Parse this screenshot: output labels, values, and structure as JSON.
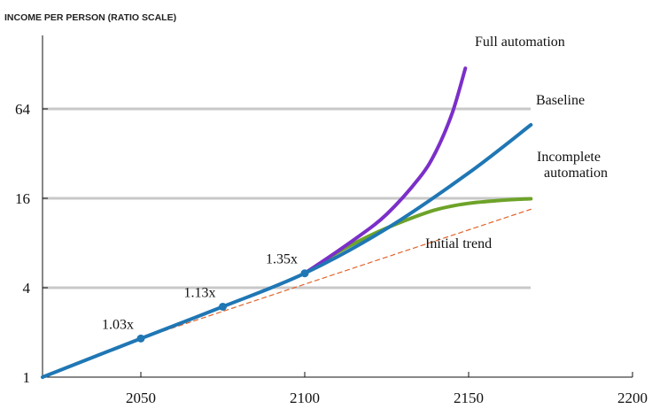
{
  "chart_data": {
    "type": "line",
    "title": "INCOME PER PERSON (RATIO SCALE)",
    "xlabel": "",
    "ylabel": "",
    "y_scale": "log2",
    "xlim": [
      2020,
      2200
    ],
    "ylim": [
      1,
      128
    ],
    "x_ticks": [
      "2050",
      "2100",
      "2150",
      "2200"
    ],
    "y_ticks": [
      "1",
      "4",
      "16",
      "64"
    ],
    "y_tick_values": [
      1,
      4,
      16,
      64
    ],
    "x_tick_values": [
      2050,
      2100,
      2150,
      2200
    ],
    "grid": "horizontal at 4, 16, 64",
    "series": [
      {
        "name": "Baseline",
        "color": "#1f77b4",
        "x": [
          2020,
          2050,
          2075,
          2100,
          2125,
          2150,
          2169
        ],
        "y": [
          1,
          1.82,
          2.98,
          5.0,
          10.0,
          23.7,
          50
        ]
      },
      {
        "name": "Full automation",
        "color": "#7b2fc9",
        "x": [
          2100,
          2115,
          2125,
          2135,
          2140,
          2145,
          2149
        ],
        "y": [
          5.0,
          8.4,
          12.5,
          22,
          33,
          60,
          120
        ]
      },
      {
        "name": "Incomplete automation",
        "color": "#6da329",
        "x": [
          2100,
          2110,
          2120,
          2130,
          2140,
          2150,
          2160,
          2169
        ],
        "y": [
          5.0,
          6.9,
          9.0,
          11.2,
          13.4,
          14.8,
          15.5,
          15.9
        ]
      },
      {
        "name": "Initial trend",
        "color": "#e0642a",
        "dashed": true,
        "x": [
          2050,
          2169
        ],
        "y": [
          1.82,
          13.5
        ]
      }
    ],
    "markers": [
      {
        "label": "1.03x",
        "x": 2050,
        "y": 1.82
      },
      {
        "label": "1.13x",
        "x": 2075,
        "y": 2.98
      },
      {
        "label": "1.35x",
        "x": 2100,
        "y": 5.0
      }
    ]
  }
}
